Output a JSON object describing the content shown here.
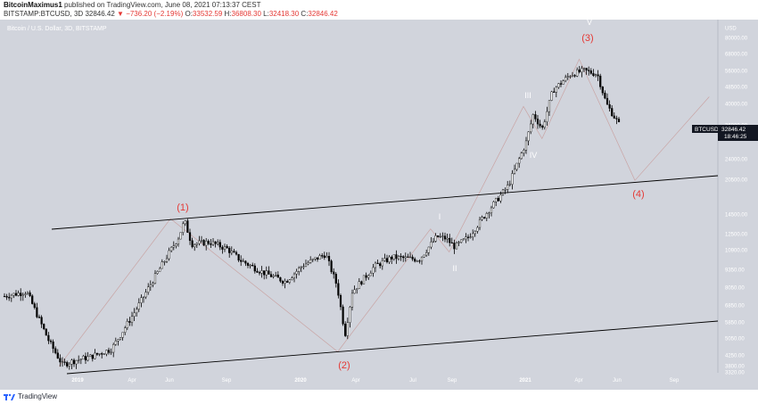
{
  "header": {
    "author": "BitcoinMaximus1",
    "published_text": "published on TradingView.com, June 08, 2021 07:13:37 CEST",
    "symbol": "BITSTAMP:BTCUSD, 3D",
    "last": "32846.42",
    "change": "▼ −736.20 (−2.19%)",
    "o_label": "O:",
    "o_value": "33532.59",
    "h_label": "H:",
    "h_value": "36808.30",
    "l_label": "L:",
    "l_value": "32418.30",
    "c_label": "C:",
    "c_value": "32846.42"
  },
  "chart_data": {
    "type": "candlestick",
    "title": "Bitcoin / U.S. Dollar, 3D, BITSTAMP",
    "scale": "log",
    "y_ticks": [
      "USD",
      "80000.00",
      "68000.00",
      "56000.00",
      "48500.00",
      "40000.00",
      "36000.00",
      "24000.00",
      "20500.00",
      "14500.00",
      "12500.00",
      "10900.00",
      "9350.00",
      "8050.00",
      "6850.00",
      "5850.00",
      "5050.00",
      "4250.00",
      "3800.00",
      "3320.00"
    ],
    "x_ticks": [
      "2019",
      "Apr",
      "Jun",
      "Sep",
      "2020",
      "Apr",
      "Jul",
      "Sep",
      "2021",
      "Apr",
      "Jun",
      "Sep"
    ],
    "price_tag": {
      "symbol": "BTCUSD",
      "price": "32846.42",
      "countdown": "18:46:25"
    },
    "wave_labels": [
      {
        "text": "(1)",
        "color": "#e53935"
      },
      {
        "text": "(2)",
        "color": "#e53935"
      },
      {
        "text": "(3)",
        "color": "#e53935"
      },
      {
        "text": "(4)",
        "color": "#e53935"
      },
      {
        "text": "I",
        "color": "#ffffff"
      },
      {
        "text": "II",
        "color": "#ffffff"
      },
      {
        "text": "III",
        "color": "#ffffff"
      },
      {
        "text": "IV",
        "color": "#ffffff"
      },
      {
        "text": "V",
        "color": "#ffffff"
      }
    ],
    "path_points": [
      {
        "date": "2018-12",
        "price": 3300
      },
      {
        "date": "2019-06",
        "price": 13800
      },
      {
        "date": "2020-03",
        "price": 3800
      },
      {
        "date": "2020-08",
        "price": 12500
      },
      {
        "date": "2020-09",
        "price": 10000
      },
      {
        "date": "2021-01",
        "price": 41000
      },
      {
        "date": "2021-02",
        "price": 30000
      },
      {
        "date": "2021-04",
        "price": 64800
      },
      {
        "date": "2021-07",
        "price": 20000
      },
      {
        "date": "2021-11",
        "price": 45000
      }
    ]
  },
  "colors": {
    "background": "#d1d4dc",
    "candle": "#000000",
    "channel": "#000000",
    "path": "#c9a4a4",
    "label_red": "#e53935"
  },
  "footer": {
    "brand": "TradingView"
  }
}
